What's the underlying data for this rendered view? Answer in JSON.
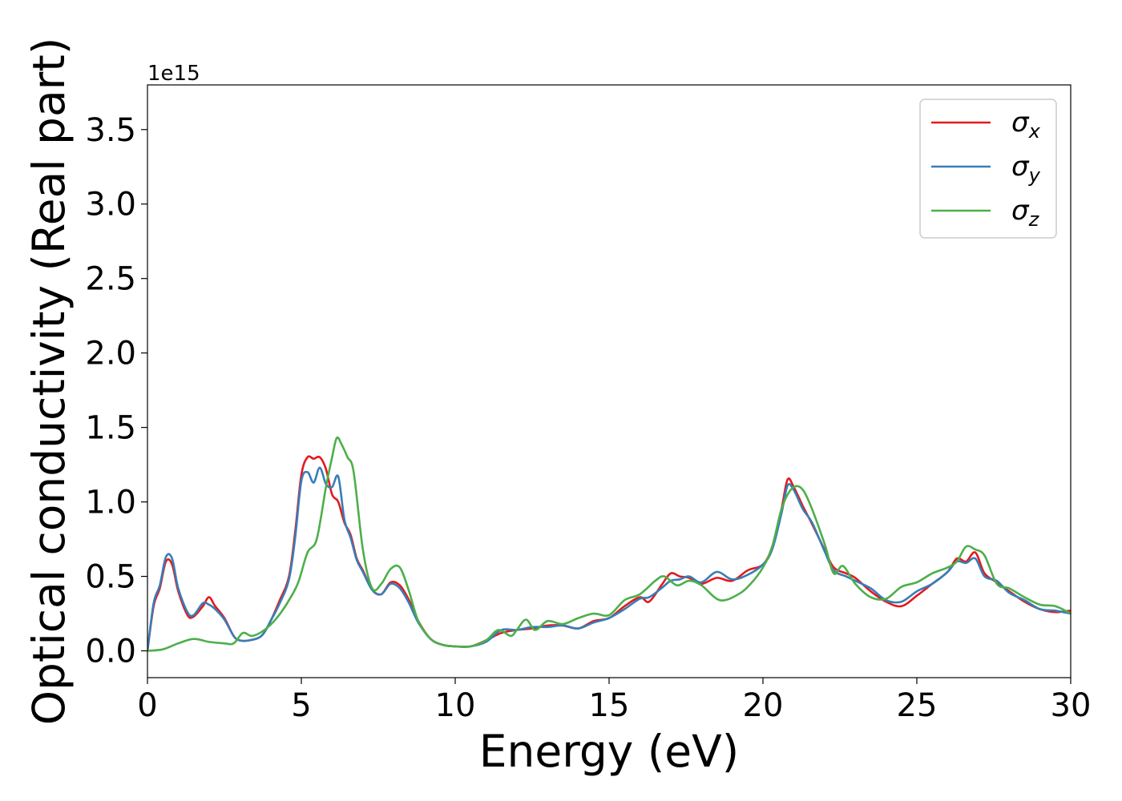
{
  "chart_data": {
    "type": "line",
    "title": "",
    "xlabel": "Energy (eV)",
    "ylabel": "Optical conductivity (Real part)",
    "y_offset_label": "1e15",
    "xlim": [
      0,
      30
    ],
    "ylim": [
      -0.18,
      3.8
    ],
    "xticks": [
      0,
      5,
      10,
      15,
      20,
      25,
      30
    ],
    "xtick_labels": [
      "0",
      "5",
      "10",
      "15",
      "20",
      "25",
      "30"
    ],
    "yticks": [
      0.0,
      0.5,
      1.0,
      1.5,
      2.0,
      2.5,
      3.0,
      3.5
    ],
    "ytick_labels": [
      "0.0",
      "0.5",
      "1.0",
      "1.5",
      "2.0",
      "2.5",
      "3.0",
      "3.5"
    ],
    "grid": false,
    "legend_position": "top-right",
    "series": [
      {
        "name": "σx",
        "symbol": "σ",
        "subscript": "x",
        "color": "#e41a1c",
        "x": [
          0,
          0.2,
          0.4,
          0.6,
          0.8,
          1.0,
          1.3,
          1.5,
          1.8,
          2.0,
          2.2,
          2.5,
          2.8,
          3.0,
          3.3,
          3.7,
          4.0,
          4.3,
          4.6,
          4.8,
          5.0,
          5.2,
          5.4,
          5.6,
          5.8,
          6.0,
          6.2,
          6.4,
          6.6,
          6.8,
          7.0,
          7.3,
          7.6,
          7.9,
          8.2,
          8.5,
          8.8,
          9.2,
          9.6,
          10.0,
          10.5,
          11.0,
          11.5,
          12.0,
          12.5,
          13.0,
          13.5,
          14.0,
          14.5,
          15.0,
          15.5,
          16.0,
          16.3,
          16.7,
          17.0,
          17.3,
          17.6,
          18.0,
          18.5,
          19.0,
          19.5,
          20.0,
          20.3,
          20.6,
          20.8,
          21.0,
          21.3,
          21.6,
          22.0,
          22.3,
          22.7,
          23.0,
          23.5,
          24.0,
          24.5,
          25.0,
          25.5,
          26.0,
          26.3,
          26.6,
          26.9,
          27.2,
          27.6,
          28.0,
          28.5,
          29.0,
          29.5,
          30.0
        ],
        "y": [
          0.0,
          0.3,
          0.42,
          0.6,
          0.58,
          0.4,
          0.24,
          0.23,
          0.3,
          0.36,
          0.3,
          0.22,
          0.1,
          0.07,
          0.07,
          0.1,
          0.2,
          0.34,
          0.5,
          0.8,
          1.18,
          1.3,
          1.29,
          1.3,
          1.22,
          1.05,
          1.0,
          0.86,
          0.78,
          0.62,
          0.54,
          0.41,
          0.38,
          0.46,
          0.44,
          0.34,
          0.2,
          0.08,
          0.04,
          0.03,
          0.03,
          0.07,
          0.12,
          0.14,
          0.15,
          0.17,
          0.17,
          0.15,
          0.2,
          0.22,
          0.3,
          0.36,
          0.33,
          0.44,
          0.52,
          0.5,
          0.49,
          0.45,
          0.49,
          0.47,
          0.54,
          0.58,
          0.7,
          0.95,
          1.15,
          1.1,
          0.97,
          0.85,
          0.68,
          0.56,
          0.52,
          0.49,
          0.4,
          0.33,
          0.3,
          0.37,
          0.45,
          0.53,
          0.62,
          0.6,
          0.66,
          0.52,
          0.46,
          0.4,
          0.33,
          0.28,
          0.26,
          0.27
        ]
      },
      {
        "name": "σy",
        "symbol": "σ",
        "subscript": "y",
        "color": "#377eb8",
        "x": [
          0,
          0.2,
          0.4,
          0.6,
          0.8,
          1.0,
          1.3,
          1.5,
          1.8,
          2.0,
          2.2,
          2.5,
          2.8,
          3.0,
          3.3,
          3.7,
          4.0,
          4.3,
          4.6,
          4.8,
          5.0,
          5.2,
          5.4,
          5.6,
          5.8,
          6.0,
          6.2,
          6.4,
          6.6,
          6.8,
          7.0,
          7.3,
          7.6,
          7.9,
          8.2,
          8.5,
          8.8,
          9.2,
          9.6,
          10.0,
          10.5,
          11.0,
          11.5,
          12.0,
          12.5,
          13.0,
          13.5,
          14.0,
          14.5,
          15.0,
          15.5,
          16.0,
          16.3,
          16.7,
          17.0,
          17.3,
          17.6,
          18.0,
          18.5,
          19.0,
          19.5,
          20.0,
          20.3,
          20.6,
          20.8,
          21.0,
          21.3,
          21.6,
          22.0,
          22.3,
          22.7,
          23.0,
          23.5,
          24.0,
          24.5,
          25.0,
          25.5,
          26.0,
          26.3,
          26.6,
          26.9,
          27.2,
          27.6,
          28.0,
          28.5,
          29.0,
          29.5,
          30.0
        ],
        "y": [
          0.0,
          0.32,
          0.44,
          0.63,
          0.62,
          0.42,
          0.26,
          0.24,
          0.32,
          0.31,
          0.28,
          0.21,
          0.1,
          0.07,
          0.07,
          0.1,
          0.2,
          0.32,
          0.48,
          0.76,
          1.14,
          1.2,
          1.13,
          1.23,
          1.12,
          1.1,
          1.17,
          0.88,
          0.76,
          0.61,
          0.53,
          0.41,
          0.38,
          0.45,
          0.42,
          0.32,
          0.19,
          0.08,
          0.04,
          0.03,
          0.03,
          0.06,
          0.14,
          0.14,
          0.16,
          0.16,
          0.17,
          0.15,
          0.19,
          0.22,
          0.28,
          0.35,
          0.36,
          0.42,
          0.47,
          0.48,
          0.5,
          0.46,
          0.53,
          0.48,
          0.51,
          0.58,
          0.68,
          0.92,
          1.11,
          1.08,
          0.95,
          0.86,
          0.67,
          0.54,
          0.5,
          0.47,
          0.42,
          0.34,
          0.33,
          0.4,
          0.45,
          0.53,
          0.6,
          0.59,
          0.62,
          0.5,
          0.47,
          0.39,
          0.34,
          0.28,
          0.27,
          0.25
        ]
      },
      {
        "name": "σz",
        "symbol": "σ",
        "subscript": "z",
        "color": "#4daf4a",
        "x": [
          0,
          0.5,
          1.0,
          1.5,
          2.0,
          2.5,
          2.8,
          3.1,
          3.4,
          3.8,
          4.2,
          4.6,
          4.9,
          5.2,
          5.5,
          5.8,
          6.0,
          6.15,
          6.3,
          6.5,
          6.7,
          7.0,
          7.3,
          7.6,
          7.9,
          8.2,
          8.5,
          8.8,
          9.2,
          9.6,
          10.0,
          10.5,
          11.0,
          11.4,
          11.8,
          12.0,
          12.3,
          12.6,
          13.0,
          13.5,
          14.0,
          14.5,
          15.0,
          15.5,
          16.0,
          16.5,
          16.8,
          17.2,
          17.6,
          18.0,
          18.6,
          19.2,
          19.6,
          20.0,
          20.3,
          20.6,
          20.9,
          21.2,
          21.5,
          22.0,
          22.3,
          22.6,
          23.0,
          23.5,
          24.0,
          24.5,
          25.0,
          25.5,
          26.0,
          26.3,
          26.6,
          26.9,
          27.2,
          27.6,
          28.0,
          28.5,
          29.0,
          29.5,
          30.0
        ],
        "y": [
          0.0,
          0.01,
          0.05,
          0.08,
          0.06,
          0.05,
          0.05,
          0.12,
          0.1,
          0.14,
          0.22,
          0.34,
          0.46,
          0.66,
          0.75,
          1.1,
          1.3,
          1.43,
          1.39,
          1.3,
          1.2,
          0.68,
          0.42,
          0.45,
          0.55,
          0.56,
          0.4,
          0.2,
          0.08,
          0.04,
          0.03,
          0.03,
          0.07,
          0.14,
          0.1,
          0.14,
          0.21,
          0.14,
          0.2,
          0.18,
          0.22,
          0.25,
          0.24,
          0.34,
          0.38,
          0.47,
          0.5,
          0.44,
          0.47,
          0.44,
          0.34,
          0.38,
          0.45,
          0.56,
          0.7,
          0.95,
          1.08,
          1.1,
          1.0,
          0.72,
          0.52,
          0.57,
          0.45,
          0.36,
          0.35,
          0.43,
          0.46,
          0.52,
          0.56,
          0.6,
          0.7,
          0.68,
          0.64,
          0.45,
          0.42,
          0.36,
          0.31,
          0.3,
          0.25
        ]
      }
    ]
  }
}
